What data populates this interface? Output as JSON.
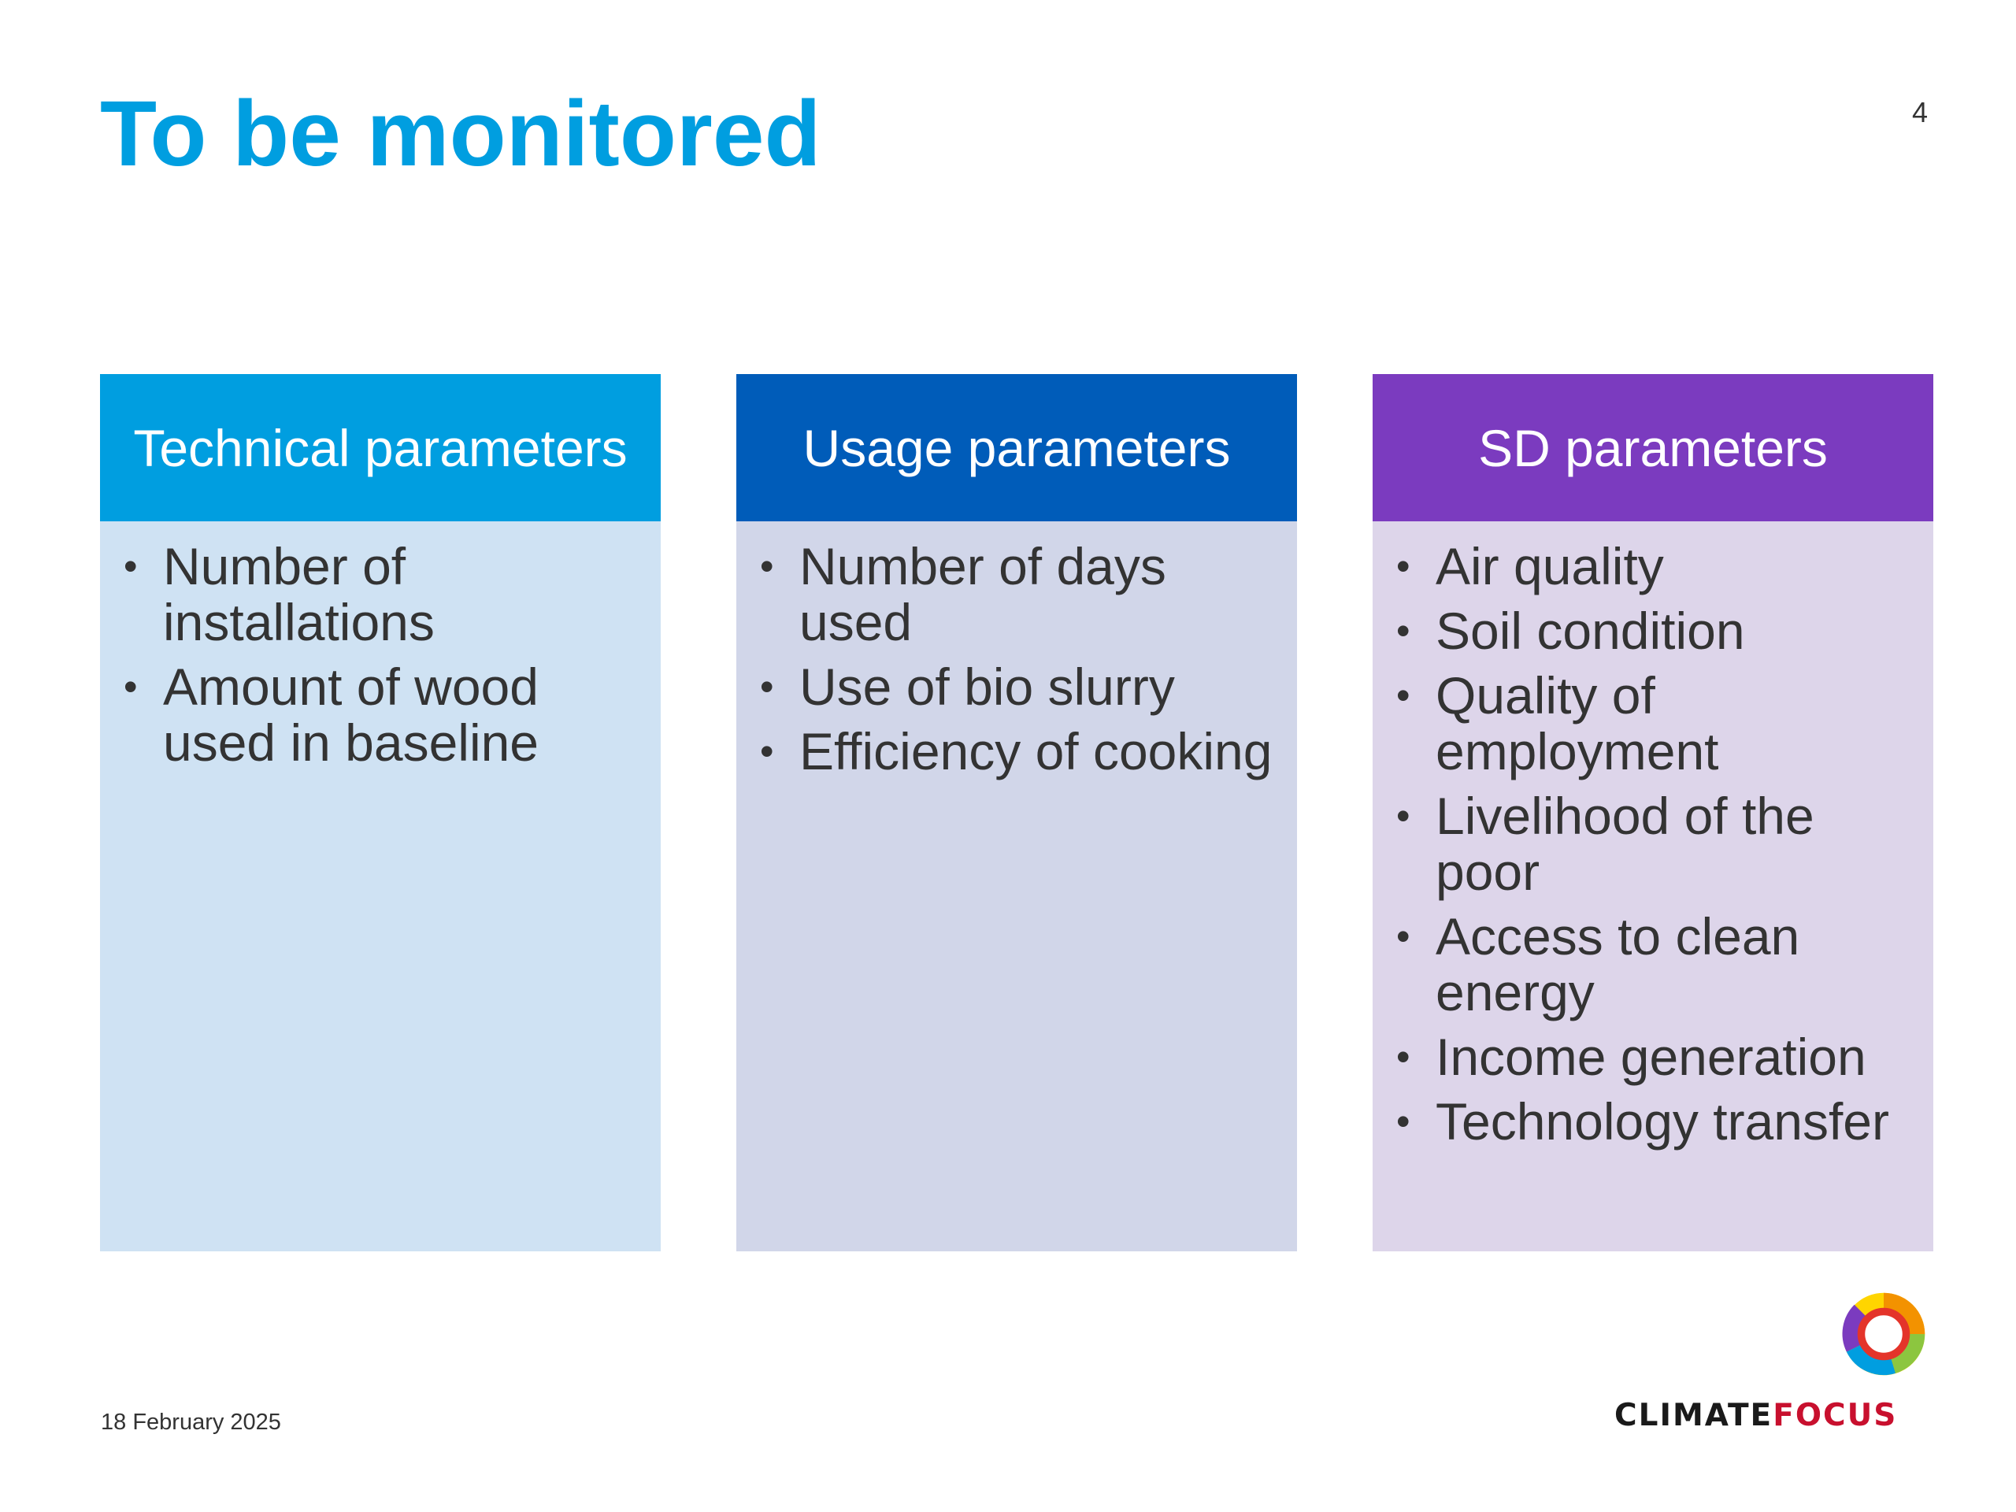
{
  "slide": {
    "title": "To be monitored",
    "page_number": "4",
    "date": "18 February 2025"
  },
  "columns": [
    {
      "header": "Technical parameters",
      "header_color": "#009ee0",
      "body_color": "#cfe2f3",
      "items": [
        "Number of installations",
        "Amount of wood used in baseline"
      ]
    },
    {
      "header": "Usage parameters",
      "header_color": "#005cb9",
      "body_color": "#d1d6e9",
      "items": [
        "Number of days used",
        "Use of bio slurry",
        "Efficiency of cooking"
      ]
    },
    {
      "header": "SD parameters",
      "header_color": "#7b3bbf",
      "body_color": "#ddd5ea",
      "items": [
        "Air quality",
        "Soil condition",
        "Quality of employment",
        "Livelihood of the poor",
        "Access to clean energy",
        "Income generation",
        "Technology transfer"
      ]
    }
  ],
  "logo": {
    "text_part1": "CLIMATE",
    "text_part2": "FOCUS",
    "ring_colors": [
      "#e4342a",
      "#f39200",
      "#ffd500",
      "#8cc63f",
      "#009ee0",
      "#7b3bbf"
    ]
  }
}
